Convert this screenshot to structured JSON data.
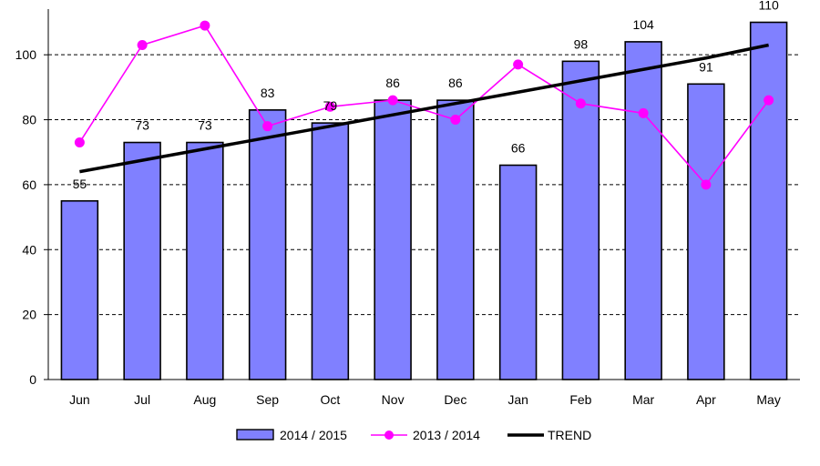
{
  "chart_data": {
    "type": "bar",
    "categories": [
      "Jun",
      "Jul",
      "Aug",
      "Sep",
      "Oct",
      "Nov",
      "Dec",
      "Jan",
      "Feb",
      "Mar",
      "Apr",
      "May"
    ],
    "series": [
      {
        "name": "2014 / 2015",
        "type": "bar",
        "values": [
          55,
          73,
          73,
          83,
          79,
          86,
          86,
          66,
          98,
          104,
          91,
          110
        ],
        "color": "#8080ff"
      },
      {
        "name": "2013 / 2014",
        "type": "line",
        "values": [
          73,
          103,
          109,
          78,
          84,
          86,
          80,
          97,
          85,
          82,
          60,
          86
        ],
        "color": "#ff00ff"
      },
      {
        "name": "TREND",
        "type": "line",
        "values": [
          64,
          67.5,
          71,
          74.5,
          78,
          81.5,
          85,
          88.5,
          92,
          95.5,
          99,
          103
        ],
        "color": "#000000"
      }
    ],
    "data_labels": [
      "55",
      "73",
      "73",
      "83",
      "79",
      "86",
      "86",
      "66",
      "98",
      "104",
      "91",
      "110"
    ],
    "y_ticks": [
      "0",
      "20",
      "40",
      "60",
      "80",
      "100"
    ],
    "ylim": [
      0,
      110
    ],
    "grid": true,
    "legend_position": "bottom"
  }
}
